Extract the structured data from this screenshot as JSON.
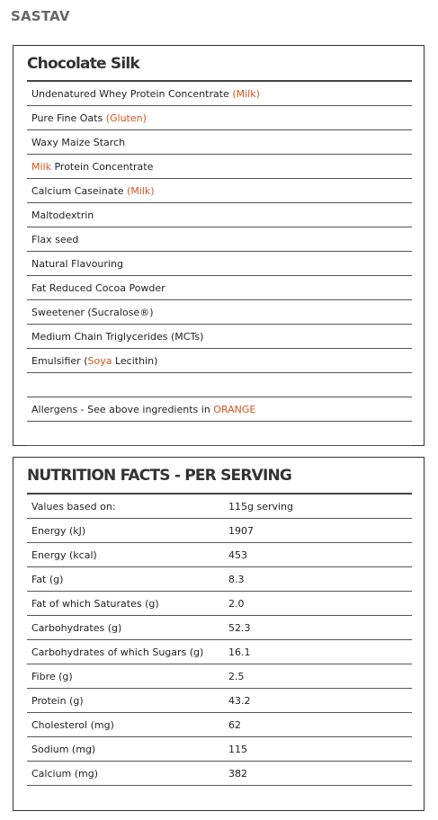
{
  "page": {
    "heading": "SASTAV"
  },
  "ingredients": {
    "title": "Chocolate Silk",
    "rows": [
      {
        "parts": [
          {
            "text": "Undenatured Whey Protein Concentrate "
          },
          {
            "text": "(Milk)",
            "allergen": true
          }
        ]
      },
      {
        "parts": [
          {
            "text": "Pure Fine Oats "
          },
          {
            "text": "(Gluten)",
            "allergen": true
          }
        ]
      },
      {
        "parts": [
          {
            "text": "Waxy Maize Starch"
          }
        ]
      },
      {
        "parts": [
          {
            "text": "Milk",
            "allergen": true
          },
          {
            "text": " Protein Concentrate"
          }
        ]
      },
      {
        "parts": [
          {
            "text": "Calcium Caseinate "
          },
          {
            "text": "(Milk)",
            "allergen": true
          }
        ]
      },
      {
        "parts": [
          {
            "text": "Maltodextrin"
          }
        ]
      },
      {
        "parts": [
          {
            "text": "Flax seed"
          }
        ]
      },
      {
        "parts": [
          {
            "text": "Natural Flavouring"
          }
        ]
      },
      {
        "parts": [
          {
            "text": "Fat Reduced Cocoa Powder"
          }
        ]
      },
      {
        "parts": [
          {
            "text": "Sweetener (Sucralose®)"
          }
        ]
      },
      {
        "parts": [
          {
            "text": "Medium Chain Triglycerides (MCTs)"
          }
        ]
      },
      {
        "parts": [
          {
            "text": "Emulsifier ("
          },
          {
            "text": "Soya",
            "allergen": true
          },
          {
            "text": " Lecithin)"
          }
        ]
      },
      {
        "parts": []
      },
      {
        "parts": [
          {
            "text": "Allergens - See above ingredients in "
          },
          {
            "text": "ORANGE",
            "allergen": true
          }
        ]
      },
      {
        "parts": []
      }
    ]
  },
  "nutrition": {
    "title": "NUTRITION FACTS - PER SERVING",
    "rows": [
      {
        "label": "Values based on:",
        "value": "115g serving"
      },
      {
        "label": "Energy (kJ)",
        "value": "1907"
      },
      {
        "label": "Energy (kcal)",
        "value": "453"
      },
      {
        "label": "Fat (g)",
        "value": "8.3"
      },
      {
        "label": "Fat of which Saturates (g)",
        "value": "2.0"
      },
      {
        "label": "Carbohydrates (g)",
        "value": "52.3"
      },
      {
        "label": "Carbohydrates of which Sugars (g)",
        "value": "16.1"
      },
      {
        "label": "Fibre (g)",
        "value": "2.5"
      },
      {
        "label": "Protein (g)",
        "value": "43.2"
      },
      {
        "label": "Cholesterol (mg)",
        "value": "62"
      },
      {
        "label": "Sodium (mg)",
        "value": "115"
      },
      {
        "label": "Calcium (mg)",
        "value": "382"
      }
    ]
  },
  "colors": {
    "allergen": "#d9531e",
    "heading": "#666666",
    "border": "#333333"
  }
}
